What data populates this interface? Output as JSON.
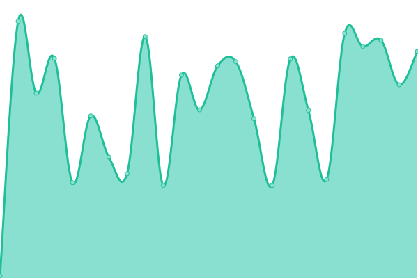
{
  "chart_data": {
    "type": "area",
    "title": "",
    "xlabel": "",
    "ylabel": "",
    "x": [
      0,
      1,
      2,
      3,
      4,
      5,
      6,
      7,
      8,
      9,
      10,
      11,
      12,
      13,
      14,
      15,
      16,
      17,
      18,
      19,
      20,
      21,
      22,
      23
    ],
    "values": [
      0.8,
      92.3,
      66.5,
      79.0,
      34.3,
      58.3,
      43.5,
      37.5,
      86.8,
      33.3,
      73.0,
      60.5,
      76.3,
      77.8,
      57.3,
      33.3,
      78.8,
      60.3,
      35.5,
      88.0,
      83.3,
      85.5,
      69.5,
      81.5
    ],
    "ylim": [
      0,
      100
    ],
    "grid": false,
    "axes_visible": false,
    "smooth": true,
    "colors": {
      "line": "#1fbf98",
      "fill": "#8ae0d0",
      "marker_fill": "#8ae0d0",
      "marker_stroke": "#1fbf98"
    }
  }
}
